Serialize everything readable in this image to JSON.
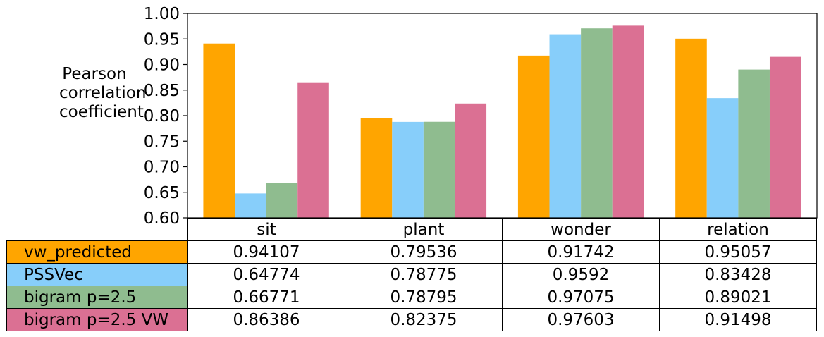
{
  "chart_data": {
    "type": "bar",
    "ylabel": "Pearson correlation coefficient",
    "ylabel_lines": [
      "Pearson",
      "correlation",
      "coefficient"
    ],
    "ylim": [
      0.6,
      1.0
    ],
    "yticks": [
      "0.60",
      "0.65",
      "0.70",
      "0.75",
      "0.80",
      "0.85",
      "0.90",
      "0.95",
      "1.00"
    ],
    "categories": [
      "sit",
      "plant",
      "wonder",
      "relation"
    ],
    "series": [
      {
        "name": "vw_predicted",
        "color": "#ffa500",
        "values": [
          0.94107,
          0.79536,
          0.91742,
          0.95057
        ],
        "labels": [
          "0.94107",
          "0.79536",
          "0.91742",
          "0.95057"
        ]
      },
      {
        "name": "PSSVec",
        "color": "#87cefa",
        "values": [
          0.64774,
          0.78775,
          0.9592,
          0.83428
        ],
        "labels": [
          "0.64774",
          "0.78775",
          "0.9592",
          "0.83428"
        ]
      },
      {
        "name": "bigram p=2.5",
        "color": "#8fbc8f",
        "values": [
          0.66771,
          0.78795,
          0.97075,
          0.89021
        ],
        "labels": [
          "0.66771",
          "0.78795",
          "0.97075",
          "0.89021"
        ]
      },
      {
        "name": "bigram p=2.5 VW",
        "color": "#db7093",
        "values": [
          0.86386,
          0.82375,
          0.97603,
          0.91498
        ],
        "labels": [
          "0.86386",
          "0.82375",
          "0.97603",
          "0.91498"
        ]
      }
    ],
    "grid": false,
    "legend": "table below chart"
  }
}
